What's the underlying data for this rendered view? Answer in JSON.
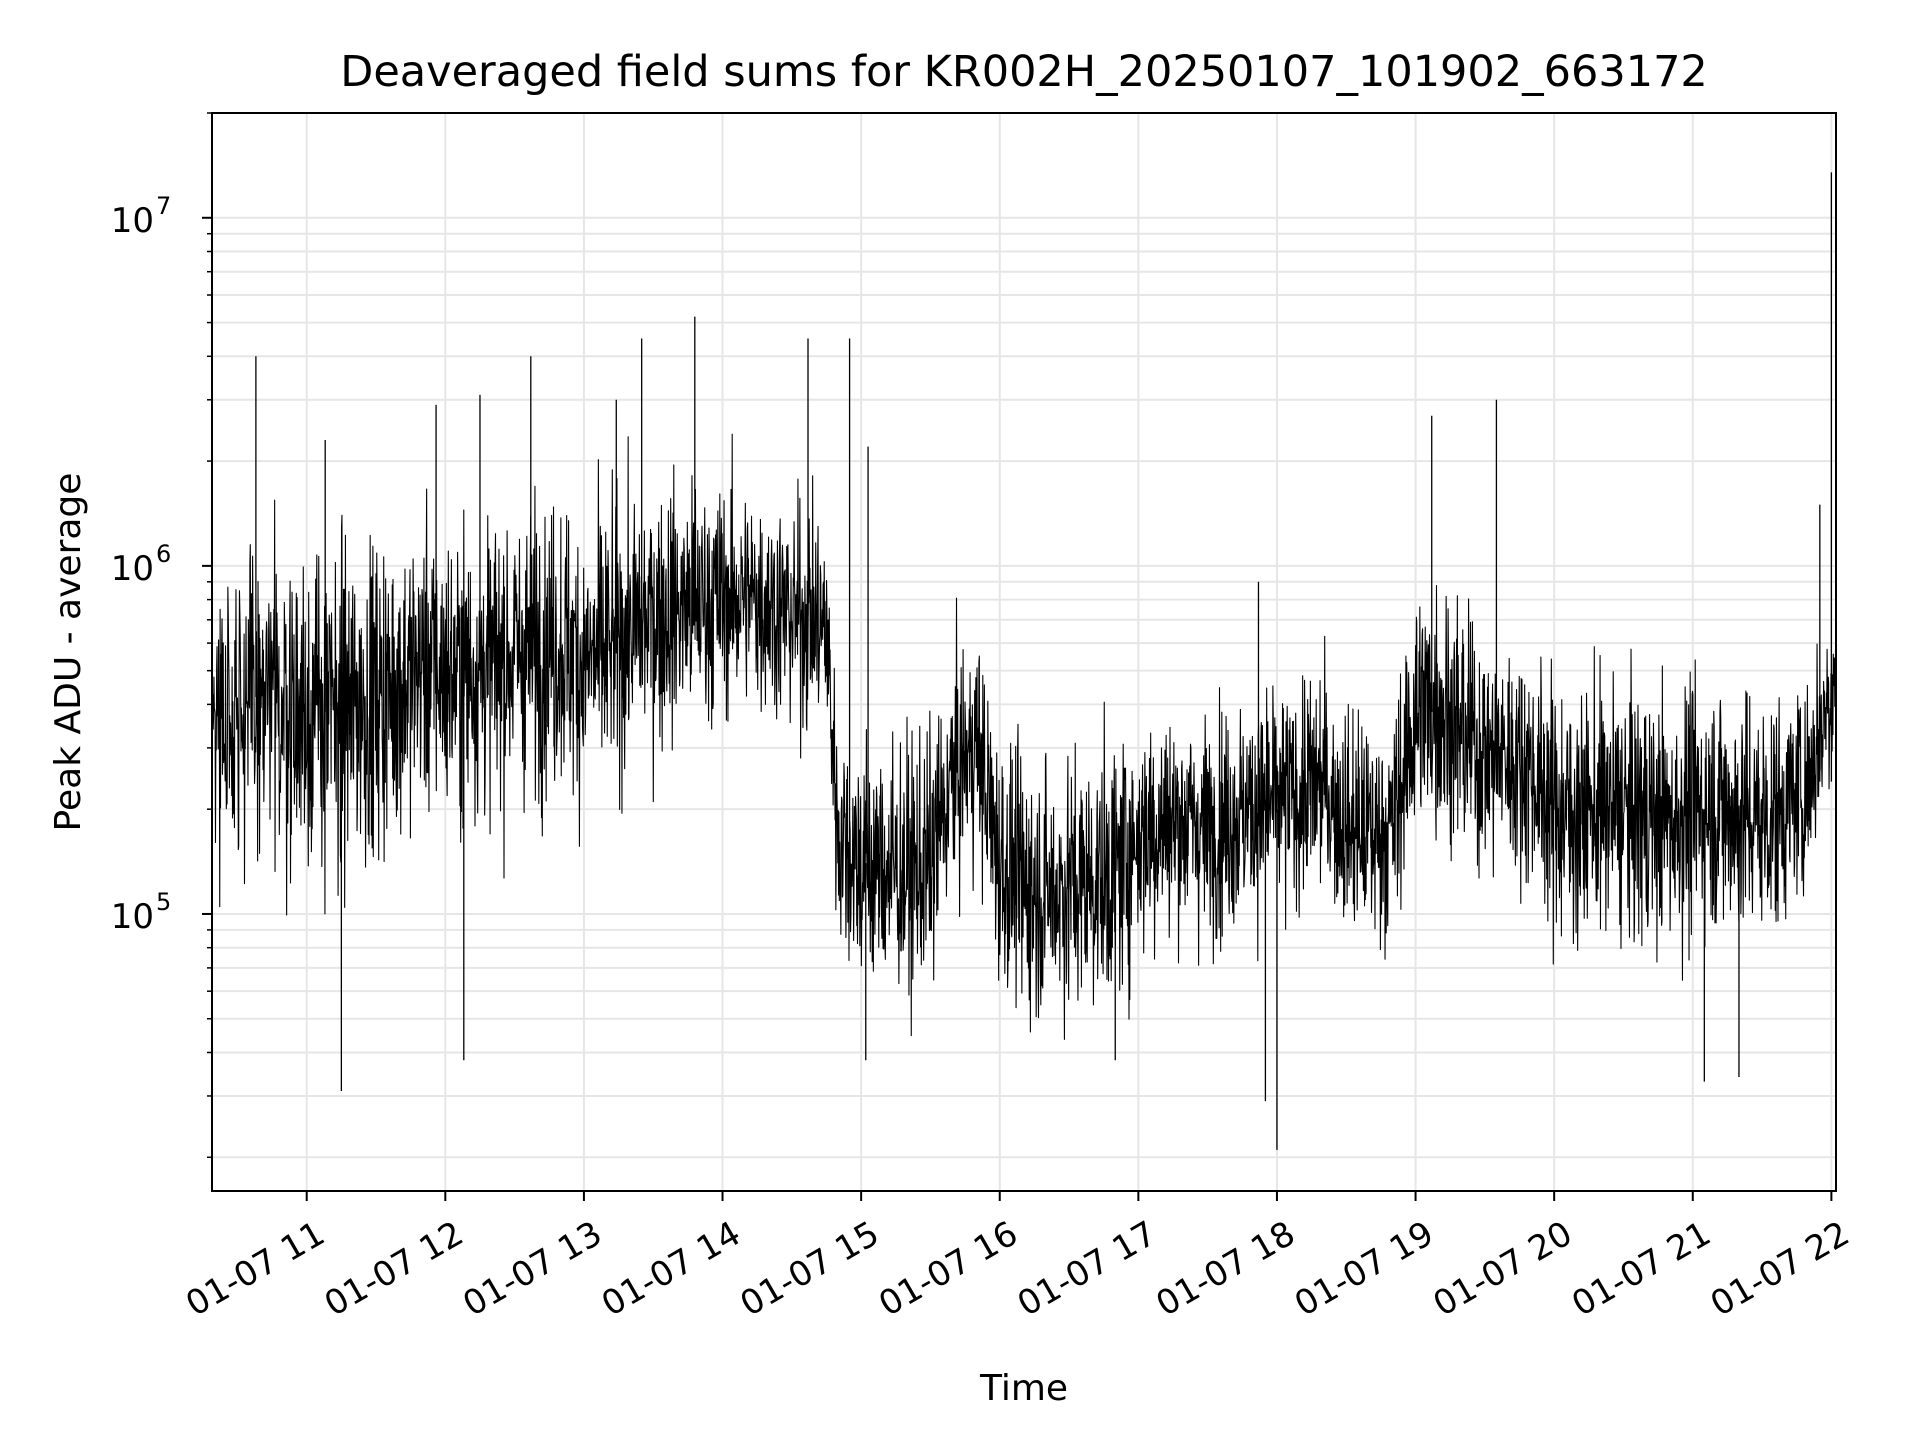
{
  "chart_data": {
    "type": "line",
    "title": "Deaveraged field sums for KR002H_20250107_101902_663172",
    "xlabel": "Time",
    "ylabel": "Peak ADU - average",
    "yscale": "log",
    "ylim": [
      16000,
      20000000
    ],
    "xlim": [
      "2025-01-07 10:19",
      "2025-01-07 22:02"
    ],
    "grid": true,
    "line_color": "#000000",
    "x_ticks": [
      {
        "label": "01-07 11",
        "time": "2025-01-07 11:00"
      },
      {
        "label": "01-07 12",
        "time": "2025-01-07 12:00"
      },
      {
        "label": "01-07 13",
        "time": "2025-01-07 13:00"
      },
      {
        "label": "01-07 14",
        "time": "2025-01-07 14:00"
      },
      {
        "label": "01-07 15",
        "time": "2025-01-07 15:00"
      },
      {
        "label": "01-07 16",
        "time": "2025-01-07 16:00"
      },
      {
        "label": "01-07 17",
        "time": "2025-01-07 17:00"
      },
      {
        "label": "01-07 18",
        "time": "2025-01-07 18:00"
      },
      {
        "label": "01-07 19",
        "time": "2025-01-07 19:00"
      },
      {
        "label": "01-07 20",
        "time": "2025-01-07 20:00"
      },
      {
        "label": "01-07 21",
        "time": "2025-01-07 21:00"
      },
      {
        "label": "01-07 22",
        "time": "2025-01-07 22:00"
      }
    ],
    "y_ticks": [
      {
        "base": "10",
        "exp": "5",
        "value": 100000
      },
      {
        "base": "10",
        "exp": "6",
        "value": 1000000
      },
      {
        "base": "10",
        "exp": "7",
        "value": 10000000
      }
    ],
    "series": [
      {
        "x": [
          "2025-01-07 10:19",
          "2025-01-07 10:30",
          "2025-01-07 10:40",
          "2025-01-07 10:50",
          "2025-01-07 11:00",
          "2025-01-07 11:10",
          "2025-01-07 11:20",
          "2025-01-07 11:30",
          "2025-01-07 11:40",
          "2025-01-07 11:50",
          "2025-01-07 12:00",
          "2025-01-07 12:10",
          "2025-01-07 12:20",
          "2025-01-07 12:30",
          "2025-01-07 12:40",
          "2025-01-07 12:50",
          "2025-01-07 13:00",
          "2025-01-07 13:10",
          "2025-01-07 13:20",
          "2025-01-07 13:30",
          "2025-01-07 13:40",
          "2025-01-07 13:50",
          "2025-01-07 14:00",
          "2025-01-07 14:10",
          "2025-01-07 14:20",
          "2025-01-07 14:30",
          "2025-01-07 14:40",
          "2025-01-07 14:45",
          "2025-01-07 14:50",
          "2025-01-07 15:00",
          "2025-01-07 15:10",
          "2025-01-07 15:20",
          "2025-01-07 15:30",
          "2025-01-07 15:40",
          "2025-01-07 15:50",
          "2025-01-07 16:00",
          "2025-01-07 16:10",
          "2025-01-07 16:20",
          "2025-01-07 16:30",
          "2025-01-07 16:40",
          "2025-01-07 16:50",
          "2025-01-07 17:00",
          "2025-01-07 17:10",
          "2025-01-07 17:20",
          "2025-01-07 17:30",
          "2025-01-07 17:40",
          "2025-01-07 17:50",
          "2025-01-07 18:00",
          "2025-01-07 18:10",
          "2025-01-07 18:20",
          "2025-01-07 18:30",
          "2025-01-07 18:40",
          "2025-01-07 18:50",
          "2025-01-07 19:00",
          "2025-01-07 19:10",
          "2025-01-07 19:20",
          "2025-01-07 19:30",
          "2025-01-07 19:40",
          "2025-01-07 19:50",
          "2025-01-07 20:00",
          "2025-01-07 20:10",
          "2025-01-07 20:20",
          "2025-01-07 20:30",
          "2025-01-07 20:40",
          "2025-01-07 20:50",
          "2025-01-07 21:00",
          "2025-01-07 21:10",
          "2025-01-07 21:20",
          "2025-01-07 21:30",
          "2025-01-07 21:40",
          "2025-01-07 21:50",
          "2025-01-07 22:00",
          "2025-01-07 22:02"
        ],
        "median": [
          350000,
          420000,
          380000,
          400000,
          380000,
          370000,
          390000,
          420000,
          450000,
          520000,
          480000,
          500000,
          520000,
          560000,
          580000,
          600000,
          520000,
          560000,
          650000,
          720000,
          750000,
          780000,
          800000,
          820000,
          780000,
          720000,
          700000,
          650000,
          170000,
          140000,
          135000,
          130000,
          140000,
          250000,
          310000,
          140000,
          120000,
          115000,
          120000,
          125000,
          130000,
          170000,
          180000,
          185000,
          175000,
          190000,
          200000,
          210000,
          220000,
          240000,
          180000,
          170000,
          175000,
          380000,
          400000,
          330000,
          290000,
          280000,
          260000,
          200000,
          190000,
          200000,
          195000,
          190000,
          185000,
          200000,
          205000,
          190000,
          185000,
          200000,
          240000,
          460000,
          500000
        ],
        "spread": [
          0.45,
          0.5,
          0.5,
          0.5,
          0.5,
          0.5,
          0.5,
          0.5,
          0.45,
          0.45,
          0.45,
          0.45,
          0.45,
          0.45,
          0.45,
          0.45,
          0.45,
          0.45,
          0.4,
          0.4,
          0.4,
          0.4,
          0.35,
          0.35,
          0.35,
          0.35,
          0.35,
          0.35,
          0.35,
          0.4,
          0.4,
          0.4,
          0.4,
          0.35,
          0.35,
          0.4,
          0.4,
          0.4,
          0.4,
          0.4,
          0.4,
          0.4,
          0.35,
          0.35,
          0.35,
          0.35,
          0.35,
          0.35,
          0.35,
          0.35,
          0.35,
          0.35,
          0.35,
          0.4,
          0.4,
          0.4,
          0.35,
          0.35,
          0.35,
          0.4,
          0.4,
          0.4,
          0.4,
          0.4,
          0.4,
          0.4,
          0.4,
          0.4,
          0.4,
          0.35,
          0.35,
          0.3,
          0.3
        ]
      }
    ],
    "spikes": [
      {
        "x": "2025-01-07 10:38",
        "y": 4000000
      },
      {
        "x": "2025-01-07 11:08",
        "y": 2300000
      },
      {
        "x": "2025-01-07 11:15",
        "y": 31000
      },
      {
        "x": "2025-01-07 11:56",
        "y": 2900000
      },
      {
        "x": "2025-01-07 12:08",
        "y": 38000
      },
      {
        "x": "2025-01-07 12:15",
        "y": 3100000
      },
      {
        "x": "2025-01-07 12:37",
        "y": 4000000
      },
      {
        "x": "2025-01-07 13:14",
        "y": 3000000
      },
      {
        "x": "2025-01-07 13:25",
        "y": 4500000
      },
      {
        "x": "2025-01-07 13:48",
        "y": 5200000
      },
      {
        "x": "2025-01-07 14:37",
        "y": 4500000
      },
      {
        "x": "2025-01-07 14:55",
        "y": 4500000
      },
      {
        "x": "2025-01-07 15:03",
        "y": 2200000
      },
      {
        "x": "2025-01-07 15:02",
        "y": 38000
      },
      {
        "x": "2025-01-07 16:50",
        "y": 38000
      },
      {
        "x": "2025-01-07 17:52",
        "y": 900000
      },
      {
        "x": "2025-01-07 17:55",
        "y": 29000
      },
      {
        "x": "2025-01-07 18:00",
        "y": 21000
      },
      {
        "x": "2025-01-07 19:07",
        "y": 2700000
      },
      {
        "x": "2025-01-07 19:35",
        "y": 3000000
      },
      {
        "x": "2025-01-07 21:05",
        "y": 33000
      },
      {
        "x": "2025-01-07 21:20",
        "y": 34000
      },
      {
        "x": "2025-01-07 21:55",
        "y": 1500000
      },
      {
        "x": "2025-01-07 22:00",
        "y": 13500000
      }
    ]
  }
}
